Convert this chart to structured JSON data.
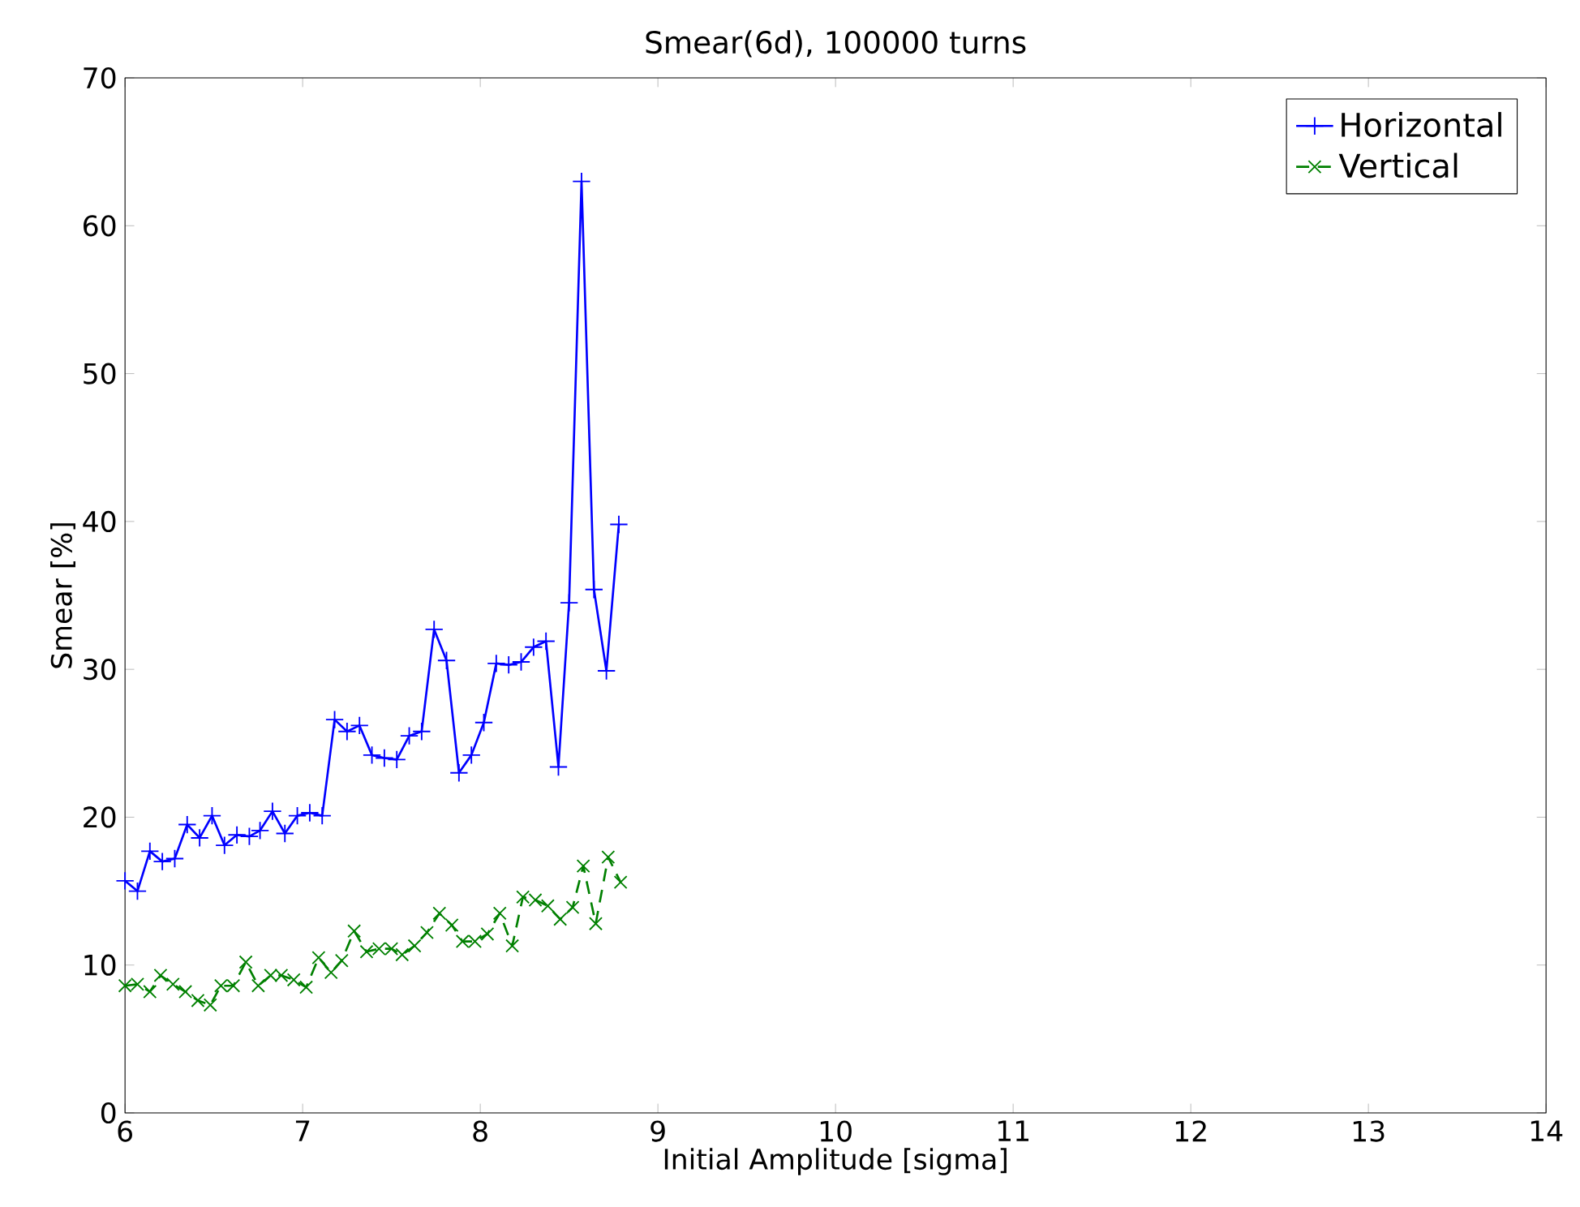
{
  "chart_data": {
    "type": "line",
    "title": "Smear(6d), 100000 turns",
    "xlabel": "Initial Amplitude [sigma]",
    "ylabel": "Smear [%]",
    "xlim": [
      6,
      14
    ],
    "ylim": [
      0,
      70
    ],
    "xticks": [
      6,
      7,
      8,
      9,
      10,
      11,
      12,
      13,
      14
    ],
    "yticks": [
      0,
      10,
      20,
      30,
      40,
      50,
      60,
      70
    ],
    "grid": false,
    "legend": "top right",
    "series": [
      {
        "name": "Horizontal",
        "color": "#0000ff",
        "marker": "cross",
        "line_style": "solid",
        "x": [
          6.0,
          6.07,
          6.14,
          6.21,
          6.28,
          6.35,
          6.42,
          6.49,
          6.56,
          6.63,
          6.7,
          6.76,
          6.83,
          6.9,
          6.97,
          7.04,
          7.11,
          7.18,
          7.25,
          7.32,
          7.39,
          7.46,
          7.53,
          7.6,
          7.67,
          7.74,
          7.81,
          7.88,
          7.95,
          8.02,
          8.09,
          8.16,
          8.23,
          8.3,
          8.37,
          8.44,
          8.5,
          8.57,
          8.64,
          8.71,
          8.78
        ],
        "values": [
          15.7,
          15.0,
          17.7,
          17.0,
          17.2,
          19.5,
          18.6,
          20.1,
          18.1,
          18.8,
          18.7,
          19.1,
          20.4,
          18.9,
          20.1,
          20.3,
          20.1,
          26.6,
          25.8,
          26.2,
          24.2,
          24.0,
          23.9,
          25.5,
          25.8,
          32.7,
          30.6,
          23.0,
          24.2,
          26.4,
          30.4,
          30.3,
          30.5,
          31.5,
          31.9,
          23.4,
          34.5,
          63.0,
          35.4,
          29.9,
          39.8
        ]
      },
      {
        "name": "Vertical",
        "color": "#008000",
        "marker": "x",
        "line_style": "dashed",
        "x": [
          6.0,
          6.07,
          6.14,
          6.2,
          6.27,
          6.34,
          6.41,
          6.48,
          6.54,
          6.61,
          6.68,
          6.75,
          6.82,
          6.88,
          6.95,
          7.02,
          7.09,
          7.16,
          7.22,
          7.29,
          7.36,
          7.43,
          7.5,
          7.56,
          7.63,
          7.7,
          7.77,
          7.84,
          7.9,
          7.97,
          8.04,
          8.11,
          8.18,
          8.24,
          8.31,
          8.38,
          8.45,
          8.52,
          8.58,
          8.65,
          8.72,
          8.79
        ],
        "values": [
          8.6,
          8.7,
          8.2,
          9.3,
          8.7,
          8.2,
          7.6,
          7.3,
          8.6,
          8.6,
          10.2,
          8.6,
          9.3,
          9.3,
          9.0,
          8.5,
          10.5,
          9.5,
          10.3,
          12.3,
          10.9,
          11.1,
          11.1,
          10.7,
          11.3,
          12.2,
          13.5,
          12.7,
          11.6,
          11.6,
          12.1,
          13.5,
          11.3,
          14.6,
          14.4,
          14.0,
          13.1,
          13.9,
          16.7,
          12.8,
          17.3,
          15.6
        ]
      }
    ]
  }
}
